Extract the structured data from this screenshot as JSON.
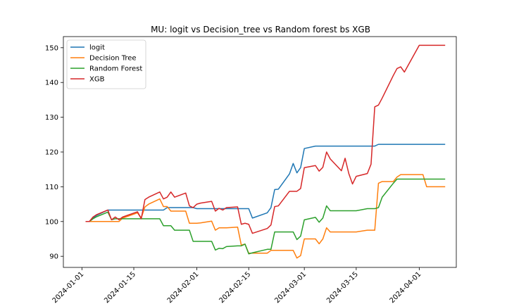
{
  "chart_data": {
    "type": "line",
    "title": "MU: logit vs Decision_tree vs Random forest bs XGB",
    "xlabel": "",
    "ylabel": "",
    "grid": false,
    "legend_position": "top-left",
    "x_axis": {
      "type": "date",
      "range": [
        "2023-12-27",
        "2024-04-11"
      ],
      "ticks": [
        "2024-01-01",
        "2024-01-15",
        "2024-02-01",
        "2024-02-15",
        "2024-03-01",
        "2024-03-15",
        "2024-04-01"
      ]
    },
    "y_axis": {
      "range": [
        86.8,
        153.2
      ],
      "ticks": [
        90,
        100,
        110,
        120,
        130,
        140,
        150
      ]
    },
    "series": [
      {
        "name": "logit",
        "color": "#1f77b4",
        "x": [
          "2024-01-02",
          "2024-01-03",
          "2024-01-04",
          "2024-01-05",
          "2024-01-08",
          "2024-01-09",
          "2024-01-10",
          "2024-01-11",
          "2024-01-12",
          "2024-01-16",
          "2024-01-17",
          "2024-01-18",
          "2024-01-19",
          "2024-01-22",
          "2024-01-23",
          "2024-01-24",
          "2024-01-25",
          "2024-01-26",
          "2024-01-29",
          "2024-01-30",
          "2024-01-31",
          "2024-02-01",
          "2024-02-02",
          "2024-02-05",
          "2024-02-06",
          "2024-02-07",
          "2024-02-08",
          "2024-02-09",
          "2024-02-12",
          "2024-02-13",
          "2024-02-14",
          "2024-02-15",
          "2024-02-16",
          "2024-02-20",
          "2024-02-21",
          "2024-02-22",
          "2024-02-23",
          "2024-02-26",
          "2024-02-27",
          "2024-02-28",
          "2024-02-29",
          "2024-03-01",
          "2024-03-04",
          "2024-03-05",
          "2024-03-06",
          "2024-03-07",
          "2024-03-08",
          "2024-03-11",
          "2024-03-12",
          "2024-03-13",
          "2024-03-14",
          "2024-03-15",
          "2024-03-18",
          "2024-03-19",
          "2024-03-20",
          "2024-03-21",
          "2024-03-22",
          "2024-03-25",
          "2024-03-26",
          "2024-03-27",
          "2024-03-28",
          "2024-04-01",
          "2024-04-02",
          "2024-04-03",
          "2024-04-04",
          "2024-04-05",
          "2024-04-08"
        ],
        "values": [
          100.0,
          100.0,
          101.0,
          101.8,
          103.3,
          103.3,
          103.3,
          103.3,
          103.3,
          103.3,
          103.3,
          103.3,
          103.3,
          103.3,
          103.3,
          104.0,
          104.0,
          104.0,
          104.0,
          104.0,
          104.0,
          103.7,
          103.7,
          103.7,
          103.7,
          103.7,
          103.7,
          103.7,
          103.7,
          103.7,
          103.7,
          103.7,
          101.0,
          102.5,
          104.0,
          109.2,
          109.3,
          113.7,
          116.7,
          114.0,
          115.5,
          121.0,
          121.7,
          121.7,
          121.7,
          121.7,
          121.7,
          121.7,
          121.7,
          121.7,
          121.7,
          121.7,
          121.7,
          121.7,
          121.7,
          122.2,
          122.2,
          122.2,
          122.2,
          122.2,
          122.2,
          122.2,
          122.2,
          122.2,
          122.2,
          122.2,
          122.2
        ]
      },
      {
        "name": "Decision Tree",
        "color": "#ff7f0e",
        "x": [
          "2024-01-02",
          "2024-01-03",
          "2024-01-04",
          "2024-01-05",
          "2024-01-08",
          "2024-01-09",
          "2024-01-10",
          "2024-01-11",
          "2024-01-12",
          "2024-01-16",
          "2024-01-17",
          "2024-01-18",
          "2024-01-19",
          "2024-01-22",
          "2024-01-23",
          "2024-01-24",
          "2024-01-25",
          "2024-01-26",
          "2024-01-29",
          "2024-01-30",
          "2024-01-31",
          "2024-02-01",
          "2024-02-02",
          "2024-02-05",
          "2024-02-06",
          "2024-02-07",
          "2024-02-08",
          "2024-02-09",
          "2024-02-12",
          "2024-02-13",
          "2024-02-14",
          "2024-02-15",
          "2024-02-16",
          "2024-02-20",
          "2024-02-21",
          "2024-02-22",
          "2024-02-23",
          "2024-02-26",
          "2024-02-27",
          "2024-02-28",
          "2024-02-29",
          "2024-03-01",
          "2024-03-04",
          "2024-03-05",
          "2024-03-06",
          "2024-03-07",
          "2024-03-08",
          "2024-03-11",
          "2024-03-12",
          "2024-03-13",
          "2024-03-14",
          "2024-03-15",
          "2024-03-18",
          "2024-03-19",
          "2024-03-20",
          "2024-03-21",
          "2024-03-22",
          "2024-03-25",
          "2024-03-26",
          "2024-03-27",
          "2024-03-28",
          "2024-04-01",
          "2024-04-02",
          "2024-04-03",
          "2024-04-04",
          "2024-04-05",
          "2024-04-08"
        ],
        "values": [
          100.0,
          100.0,
          100.0,
          100.0,
          100.0,
          100.0,
          100.0,
          100.0,
          101.0,
          102.5,
          101.0,
          104.2,
          105.0,
          106.5,
          104.3,
          104.3,
          103.0,
          103.0,
          103.0,
          99.5,
          99.5,
          99.5,
          99.6,
          100.1,
          97.5,
          98.2,
          98.2,
          98.2,
          98.4,
          93.2,
          93.5,
          90.9,
          90.9,
          90.9,
          91.7,
          91.7,
          91.7,
          91.7,
          91.7,
          89.5,
          90.2,
          95.0,
          95.0,
          93.6,
          95.0,
          98.2,
          97.0,
          97.0,
          97.0,
          97.0,
          97.0,
          97.0,
          97.5,
          97.5,
          97.5,
          111.0,
          111.5,
          111.5,
          112.8,
          113.5,
          113.5,
          113.5,
          113.5,
          110.0,
          110.0,
          110.0,
          110.0
        ]
      },
      {
        "name": "Random Forest",
        "color": "#2ca02c",
        "x": [
          "2024-01-02",
          "2024-01-03",
          "2024-01-04",
          "2024-01-05",
          "2024-01-08",
          "2024-01-09",
          "2024-01-10",
          "2024-01-11",
          "2024-01-12",
          "2024-01-16",
          "2024-01-17",
          "2024-01-18",
          "2024-01-19",
          "2024-01-22",
          "2024-01-23",
          "2024-01-24",
          "2024-01-25",
          "2024-01-26",
          "2024-01-29",
          "2024-01-30",
          "2024-01-31",
          "2024-02-01",
          "2024-02-02",
          "2024-02-05",
          "2024-02-06",
          "2024-02-07",
          "2024-02-08",
          "2024-02-09",
          "2024-02-12",
          "2024-02-13",
          "2024-02-14",
          "2024-02-15",
          "2024-02-16",
          "2024-02-20",
          "2024-02-21",
          "2024-02-22",
          "2024-02-23",
          "2024-02-26",
          "2024-02-27",
          "2024-02-28",
          "2024-02-29",
          "2024-03-01",
          "2024-03-04",
          "2024-03-05",
          "2024-03-06",
          "2024-03-07",
          "2024-03-08",
          "2024-03-11",
          "2024-03-12",
          "2024-03-13",
          "2024-03-14",
          "2024-03-15",
          "2024-03-18",
          "2024-03-19",
          "2024-03-20",
          "2024-03-21",
          "2024-03-22",
          "2024-03-25",
          "2024-03-26",
          "2024-03-27",
          "2024-03-28",
          "2024-04-01",
          "2024-04-02",
          "2024-04-03",
          "2024-04-04",
          "2024-04-05",
          "2024-04-08"
        ],
        "values": [
          100.0,
          100.0,
          100.8,
          101.4,
          102.7,
          100.5,
          100.8,
          100.8,
          100.8,
          100.8,
          100.8,
          100.8,
          100.8,
          100.8,
          98.8,
          98.8,
          98.8,
          97.5,
          97.5,
          97.5,
          94.3,
          94.3,
          94.3,
          94.3,
          91.8,
          92.3,
          92.2,
          92.8,
          93.0,
          93.0,
          93.5,
          90.7,
          91.0,
          92.0,
          92.0,
          97.0,
          97.0,
          97.0,
          97.0,
          94.8,
          95.8,
          100.5,
          101.2,
          99.8,
          101.0,
          104.5,
          103.1,
          103.1,
          103.1,
          103.1,
          103.1,
          103.1,
          103.7,
          103.7,
          103.7,
          104.0,
          107.0,
          111.0,
          112.2,
          112.2,
          112.2,
          112.2,
          112.2,
          112.2,
          112.2,
          112.2,
          112.2
        ]
      },
      {
        "name": "XGB",
        "color": "#d62728",
        "x": [
          "2024-01-02",
          "2024-01-03",
          "2024-01-04",
          "2024-01-05",
          "2024-01-08",
          "2024-01-09",
          "2024-01-10",
          "2024-01-11",
          "2024-01-12",
          "2024-01-16",
          "2024-01-17",
          "2024-01-18",
          "2024-01-19",
          "2024-01-22",
          "2024-01-23",
          "2024-01-24",
          "2024-01-25",
          "2024-01-26",
          "2024-01-29",
          "2024-01-30",
          "2024-01-31",
          "2024-02-01",
          "2024-02-02",
          "2024-02-05",
          "2024-02-06",
          "2024-02-07",
          "2024-02-08",
          "2024-02-09",
          "2024-02-12",
          "2024-02-13",
          "2024-02-14",
          "2024-02-15",
          "2024-02-16",
          "2024-02-20",
          "2024-02-21",
          "2024-02-22",
          "2024-02-23",
          "2024-02-26",
          "2024-02-27",
          "2024-02-28",
          "2024-02-29",
          "2024-03-01",
          "2024-03-04",
          "2024-03-05",
          "2024-03-06",
          "2024-03-07",
          "2024-03-08",
          "2024-03-11",
          "2024-03-12",
          "2024-03-13",
          "2024-03-14",
          "2024-03-15",
          "2024-03-18",
          "2024-03-19",
          "2024-03-20",
          "2024-03-21",
          "2024-03-22",
          "2024-03-25",
          "2024-03-26",
          "2024-03-27",
          "2024-03-28",
          "2024-04-01",
          "2024-04-02",
          "2024-04-03",
          "2024-04-04",
          "2024-04-05",
          "2024-04-08"
        ],
        "values": [
          100.0,
          100.0,
          101.3,
          102.0,
          103.3,
          100.5,
          101.3,
          100.5,
          101.3,
          102.8,
          100.8,
          106.3,
          107.0,
          108.5,
          106.5,
          107.0,
          108.5,
          107.0,
          108.2,
          104.5,
          104.0,
          105.0,
          105.3,
          105.8,
          103.0,
          103.8,
          103.3,
          104.0,
          104.2,
          99.2,
          99.5,
          99.2,
          96.6,
          98.0,
          99.0,
          104.3,
          104.5,
          108.7,
          108.7,
          108.7,
          109.5,
          115.5,
          116.1,
          114.5,
          115.6,
          120.0,
          118.0,
          114.6,
          118.2,
          113.8,
          110.8,
          113.0,
          113.8,
          116.5,
          133.0,
          133.5,
          135.5,
          142.0,
          144.0,
          144.5,
          143.0,
          150.7,
          150.7,
          150.7,
          150.7,
          150.7,
          150.7
        ]
      }
    ]
  }
}
